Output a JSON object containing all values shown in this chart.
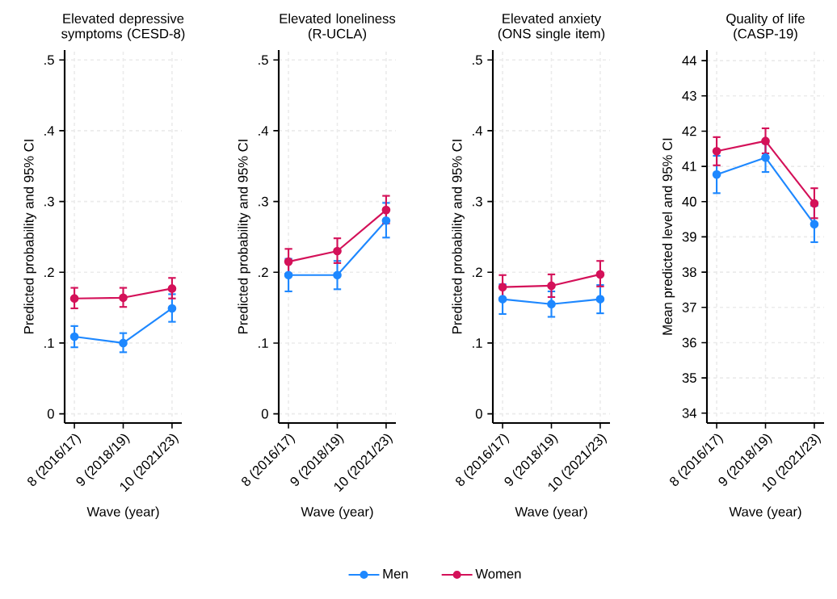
{
  "chart_data": [
    {
      "type": "line",
      "title": "Elevated depressive symptoms (CESD-8)",
      "xlabel": "Wave (year)",
      "ylabel": "Predicted probability and 95% CI",
      "categories": [
        "8 (2016/17)",
        "9 (2018/19)",
        "10 (2021/23)"
      ],
      "ylim": [
        -0.013,
        0.514
      ],
      "yticks": [
        0,
        {
          "value": 0.1,
          "label": ".1"
        },
        {
          "value": 0.2,
          "label": ".2"
        },
        {
          "value": 0.3,
          "label": ".3"
        },
        {
          "value": 0.4,
          "label": ".4"
        },
        {
          "value": 0.5,
          "label": ".5"
        }
      ],
      "grid": true,
      "marker": "circle",
      "line_style": "solid",
      "series": [
        {
          "color": "#1e88ff",
          "values": [
            0.109,
            0.1,
            0.149
          ],
          "errors": [
            [
              0.094,
              0.124
            ],
            [
              0.087,
              0.114
            ],
            [
              0.13,
              0.169
            ]
          ]
        },
        {
          "color": "#d41159",
          "values": [
            0.163,
            0.164,
            0.177
          ],
          "errors": [
            [
              0.149,
              0.178
            ],
            [
              0.151,
              0.178
            ],
            [
              0.163,
              0.192
            ]
          ]
        }
      ]
    },
    {
      "type": "line",
      "title": "Elevated loneliness (R-UCLA)",
      "xlabel": "Wave (year)",
      "ylabel": "Predicted probability and 95% CI",
      "categories": [
        "8 (2016/17)",
        "9 (2018/19)",
        "10 (2021/23)"
      ],
      "ylim": [
        -0.013,
        0.514
      ],
      "yticks": [
        0,
        {
          "value": 0.1,
          "label": ".1"
        },
        {
          "value": 0.2,
          "label": ".2"
        },
        {
          "value": 0.3,
          "label": ".3"
        },
        {
          "value": 0.4,
          "label": ".4"
        },
        {
          "value": 0.5,
          "label": ".5"
        }
      ],
      "grid": true,
      "marker": "circle",
      "line_style": "solid",
      "legend": "bottom",
      "series": [
        {
          "name": "Men",
          "color": "#1e88ff",
          "values": [
            0.196,
            0.196,
            0.273
          ],
          "errors": [
            [
              0.173,
              0.219
            ],
            [
              0.176,
              0.216
            ],
            [
              0.249,
              0.298
            ]
          ]
        },
        {
          "name": "Women",
          "color": "#d41159",
          "values": [
            0.215,
            0.23,
            0.288
          ],
          "errors": [
            [
              0.198,
              0.233
            ],
            [
              0.213,
              0.248
            ],
            [
              0.269,
              0.308
            ]
          ]
        }
      ]
    },
    {
      "type": "line",
      "title": "Elevated anxiety (ONS single item)",
      "xlabel": "Wave (year)",
      "ylabel": "Predicted probability and 95% CI",
      "categories": [
        "8 (2016/17)",
        "9 (2018/19)",
        "10 (2021/23)"
      ],
      "ylim": [
        -0.013,
        0.514
      ],
      "yticks": [
        0,
        {
          "value": 0.1,
          "label": ".1"
        },
        {
          "value": 0.2,
          "label": ".2"
        },
        {
          "value": 0.3,
          "label": ".3"
        },
        {
          "value": 0.4,
          "label": ".4"
        },
        {
          "value": 0.5,
          "label": ".5"
        }
      ],
      "grid": true,
      "marker": "circle",
      "line_style": "solid",
      "series": [
        {
          "color": "#1e88ff",
          "values": [
            0.162,
            0.155,
            0.162
          ],
          "errors": [
            [
              0.141,
              0.183
            ],
            [
              0.137,
              0.173
            ],
            [
              0.142,
              0.182
            ]
          ]
        },
        {
          "color": "#d41159",
          "values": [
            0.179,
            0.181,
            0.197
          ],
          "errors": [
            [
              0.163,
              0.196
            ],
            [
              0.165,
              0.197
            ],
            [
              0.18,
              0.216
            ]
          ]
        }
      ]
    },
    {
      "type": "line",
      "title": "Quality of life (CASP-19)",
      "xlabel": "Wave (year)",
      "ylabel": "Mean predicted level and 95% CI",
      "categories": [
        "8 (2016/17)",
        "9 (2018/19)",
        "10 (2021/23)"
      ],
      "ylim": [
        33.72,
        44.3
      ],
      "yticks": [
        34,
        35,
        36,
        37,
        38,
        39,
        40,
        41,
        42,
        43,
        44
      ],
      "grid": true,
      "marker": "circle",
      "line_style": "solid",
      "series": [
        {
          "color": "#1e88ff",
          "values": [
            40.77,
            41.25,
            39.36
          ],
          "errors": [
            [
              40.24,
              41.3
            ],
            [
              40.84,
              41.66
            ],
            [
              38.85,
              39.88
            ]
          ]
        },
        {
          "color": "#d41159",
          "values": [
            41.43,
            41.72,
            39.95
          ],
          "errors": [
            [
              41.03,
              41.83
            ],
            [
              41.37,
              42.08
            ],
            [
              39.53,
              40.38
            ]
          ]
        }
      ]
    }
  ]
}
